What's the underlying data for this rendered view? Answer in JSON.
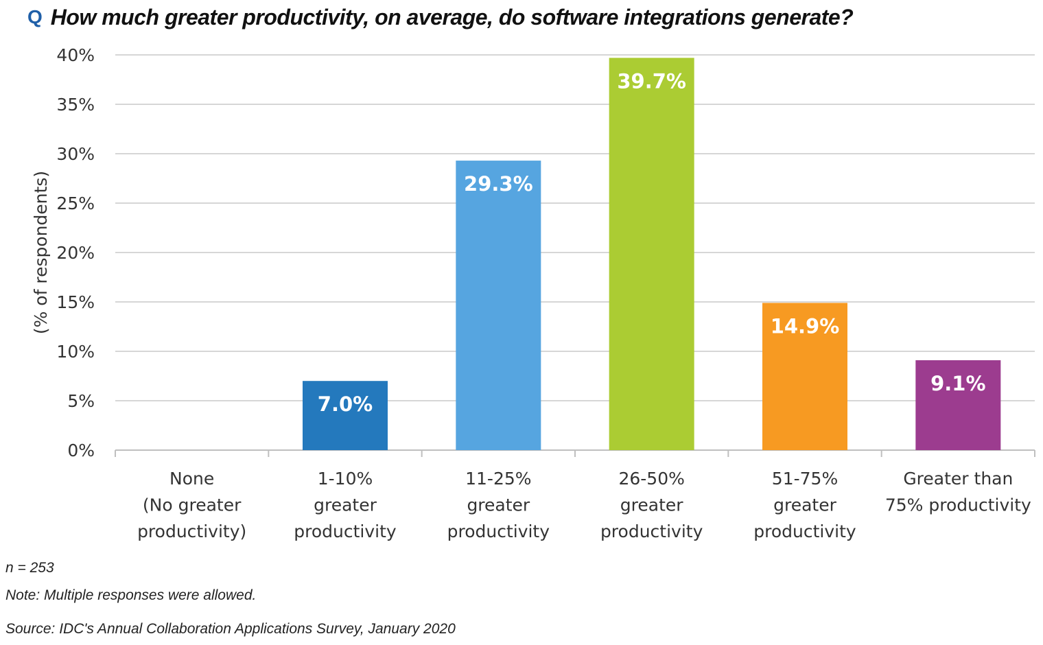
{
  "header": {
    "q_marker": "Q",
    "question": "How much greater productivity, on average, do software integrations generate?"
  },
  "chart_data": {
    "type": "bar",
    "title": "How much greater productivity, on average, do software integrations generate?",
    "ylabel": "(% of respondents)",
    "xlabel": "",
    "ylim": [
      0,
      40
    ],
    "yticks": [
      "0%",
      "5%",
      "10%",
      "15%",
      "20%",
      "25%",
      "30%",
      "35%",
      "40%"
    ],
    "grid": true,
    "categories": [
      [
        "None",
        "(No greater",
        "productivity)"
      ],
      [
        "1-10%",
        "greater",
        "productivity"
      ],
      [
        "11-25%",
        "greater",
        "productivity"
      ],
      [
        "26-50%",
        "greater",
        "productivity"
      ],
      [
        "51-75%",
        "greater",
        "productivity"
      ],
      [
        "Greater than",
        "75% productivity"
      ]
    ],
    "values": [
      0,
      7.0,
      29.3,
      39.7,
      14.9,
      9.1
    ],
    "data_labels": [
      "",
      "7.0%",
      "29.3%",
      "39.7%",
      "14.9%",
      "9.1%"
    ],
    "colors": [
      "#ffffff",
      "#2479bd",
      "#56a5e0",
      "#abcc33",
      "#f79a22",
      "#9c3c8f"
    ]
  },
  "footnotes": {
    "n": "n = 253",
    "note": "Note: Multiple responses were allowed.",
    "source": "Source: IDC's Annual Collaboration Applications Survey, January 2020"
  }
}
